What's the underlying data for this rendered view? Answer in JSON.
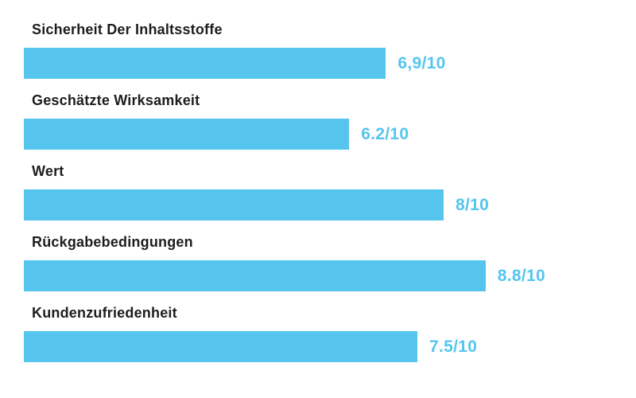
{
  "chart_data": {
    "type": "bar",
    "orientation": "horizontal",
    "title": "",
    "xlabel": "",
    "ylabel": "",
    "axis_max": 10,
    "grid": false,
    "legend": false,
    "bar_color": "#55C5EE",
    "value_text_color": "#55C5EE",
    "label_text_color": "#1D1D1F",
    "background_color": "#FFFFFF",
    "categories": [
      "Sicherheit Der Inhaltsstoffe",
      "Geschätzte Wirksamkeit",
      "Wert",
      "Rückgabebedingungen",
      "Kundenzufriedenheit"
    ],
    "values": [
      6.9,
      6.2,
      8,
      8.8,
      7.5
    ],
    "value_labels": [
      "6,9/10",
      "6.2/10",
      "8/10",
      "8.8/10",
      "7.5/10"
    ]
  }
}
